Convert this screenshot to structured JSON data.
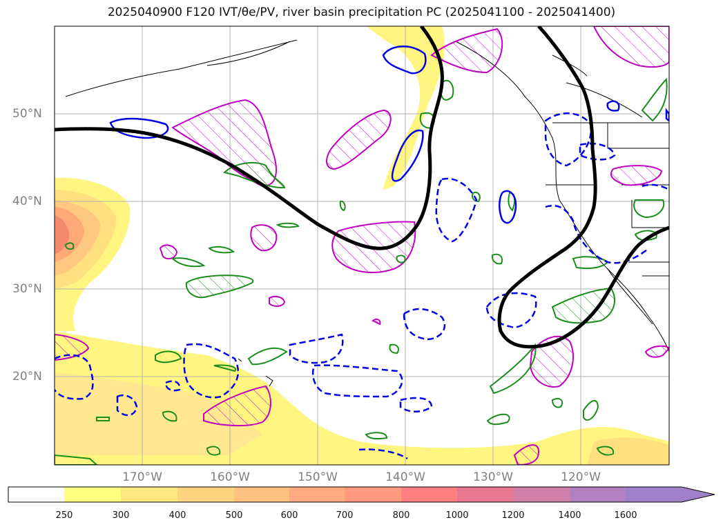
{
  "title": "2025040900 F120 IVT/θe/PV, river basin precipitation PC (2025041100 - 2025041400)",
  "lat_labels": [
    "50°N",
    "40°N",
    "30°N",
    "20°N"
  ],
  "lon_labels": [
    "170°W",
    "160°W",
    "150°W",
    "140°W",
    "130°W",
    "120°W"
  ],
  "colorbar": {
    "ticks": [
      "250",
      "300",
      "400",
      "500",
      "600",
      "700",
      "800",
      "1000",
      "1200",
      "1400",
      "1600"
    ],
    "colors": [
      "#ffffff",
      "#ffff80",
      "#ffe880",
      "#ffd480",
      "#ffc080",
      "#ffaa80",
      "#ff9980",
      "#ff8080",
      "#e87890",
      "#d080a8",
      "#b080c0",
      "#a080c8"
    ]
  },
  "legend_colors": {
    "ivt_low": "#fff580",
    "ivt_high": "#f4896b",
    "pv": "#000000",
    "theta_e_pos": "#1a8c1a",
    "precip_pc_pos": "#c000c0",
    "precip_pc_neg": "#0000e6"
  }
}
